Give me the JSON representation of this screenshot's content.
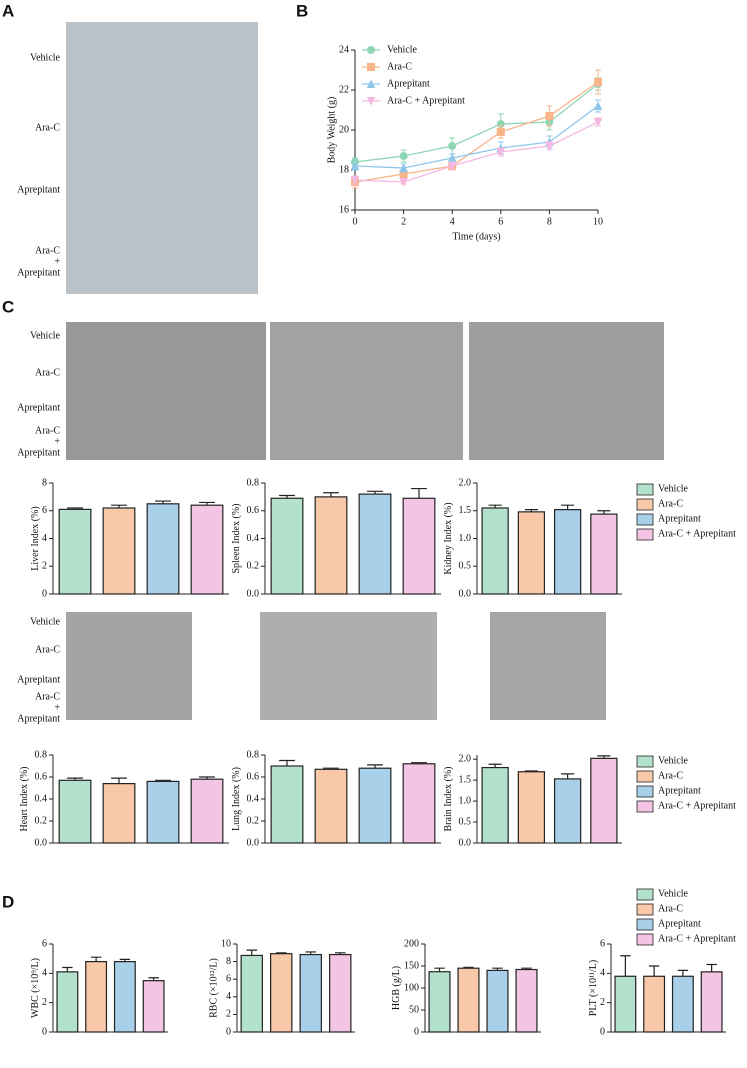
{
  "panel_labels": [
    "A",
    "B",
    "C",
    "D"
  ],
  "photo_labels": [
    [
      "Vehicle"
    ],
    [
      "Ara-C"
    ],
    [
      "Aprepitant"
    ],
    [
      "Ara-C",
      "+",
      "Aprepitant"
    ]
  ],
  "groups": [
    {
      "name": "Vehicle",
      "color": "#b3e2cc"
    },
    {
      "name": "Ara-C",
      "color": "#f8c8a8"
    },
    {
      "name": "Aprepitant",
      "color": "#a8d0e8"
    },
    {
      "name": "Ara-C + Aprepitant",
      "color": "#f4c4e4"
    }
  ],
  "chart_data": [
    {
      "type": "line",
      "xlabel": "Time (days)",
      "ylabel": "Body Weight (g)",
      "x": [
        0,
        2,
        4,
        6,
        8,
        10
      ],
      "xlim": [
        0,
        10
      ],
      "xticks": [
        0,
        2,
        4,
        6,
        8,
        10
      ],
      "ylim": [
        16,
        24
      ],
      "yticks": [
        16,
        18,
        20,
        22,
        24
      ],
      "series": [
        {
          "name": "Vehicle",
          "color": "#8fd6b4",
          "marker": "circle",
          "values": [
            18.4,
            18.7,
            19.2,
            20.3,
            20.4,
            22.3
          ],
          "errors": [
            0.2,
            0.3,
            0.4,
            0.5,
            0.4,
            0.3
          ]
        },
        {
          "name": "Ara-C",
          "color": "#f9b48a",
          "marker": "square",
          "values": [
            17.4,
            17.8,
            18.2,
            19.9,
            20.7,
            22.4
          ],
          "errors": [
            0.3,
            0.2,
            0.2,
            0.3,
            0.5,
            0.6
          ]
        },
        {
          "name": "Aprepitant",
          "color": "#8ec6ea",
          "marker": "triangle-up",
          "values": [
            18.2,
            18.1,
            18.6,
            19.1,
            19.4,
            21.2
          ],
          "errors": [
            0.2,
            0.2,
            0.2,
            0.3,
            0.3,
            0.3
          ]
        },
        {
          "name": "Ara-C + Aprepitant",
          "color": "#f4b8e0",
          "marker": "triangle-down",
          "values": [
            17.5,
            17.4,
            18.2,
            18.9,
            19.2,
            20.4
          ],
          "errors": [
            0.2,
            0.1,
            0.2,
            0.2,
            0.2,
            0.2
          ]
        }
      ]
    },
    {
      "type": "bar",
      "ylabel": "Liver Index (%)",
      "values": [
        6.1,
        6.2,
        6.5,
        6.4
      ],
      "errors": [
        0.1,
        0.2,
        0.2,
        0.2
      ],
      "ylim": [
        0,
        8
      ],
      "yticks": [
        0,
        2,
        4,
        6,
        8
      ]
    },
    {
      "type": "bar",
      "ylabel": "Spleen Index (%)",
      "values": [
        0.69,
        0.7,
        0.72,
        0.69
      ],
      "errors": [
        0.02,
        0.03,
        0.02,
        0.07
      ],
      "ylim": [
        0,
        0.8
      ],
      "yticks": [
        {
          "value": 0,
          "label": "0.0"
        },
        0.2,
        0.4,
        0.6,
        0.8
      ]
    },
    {
      "type": "bar",
      "ylabel": "Kidney Index (%)",
      "values": [
        1.55,
        1.48,
        1.52,
        1.44
      ],
      "errors": [
        0.05,
        0.04,
        0.08,
        0.06
      ],
      "ylim": [
        0,
        2
      ],
      "yticks": [
        {
          "value": 0,
          "label": "0.0"
        },
        0.5,
        {
          "value": 1,
          "label": "1.0"
        },
        1.5,
        {
          "value": 2,
          "label": "2.0"
        }
      ]
    },
    {
      "type": "bar",
      "ylabel": "Heart Index (%)",
      "values": [
        0.57,
        0.54,
        0.56,
        0.58
      ],
      "errors": [
        0.02,
        0.05,
        0.01,
        0.02
      ],
      "ylim": [
        0,
        0.8
      ],
      "yticks": [
        {
          "value": 0,
          "label": "0.0"
        },
        0.2,
        0.4,
        0.6,
        0.8
      ]
    },
    {
      "type": "bar",
      "ylabel": "Lung Index (%)",
      "values": [
        0.7,
        0.67,
        0.68,
        0.72
      ],
      "errors": [
        0.05,
        0.01,
        0.03,
        0.01
      ],
      "ylim": [
        0,
        0.8
      ],
      "yticks": [
        {
          "value": 0,
          "label": "0.0"
        },
        0.2,
        0.4,
        0.6,
        0.8
      ]
    },
    {
      "type": "bar",
      "ylabel": "Brain Index (%)",
      "values": [
        1.8,
        1.7,
        1.53,
        2.02
      ],
      "errors": [
        0.08,
        0.02,
        0.12,
        0.06
      ],
      "ylim": [
        0,
        2.1
      ],
      "yticks": [
        {
          "value": 0,
          "label": "0.0"
        },
        0.5,
        {
          "value": 1,
          "label": "1.0"
        },
        1.5,
        {
          "value": 2,
          "label": "2.0"
        }
      ]
    },
    {
      "type": "bar",
      "ylabel": "WBC (×10⁹/L)",
      "values": [
        4.1,
        4.8,
        4.8,
        3.5
      ],
      "errors": [
        0.3,
        0.3,
        0.15,
        0.2
      ],
      "ylim": [
        0,
        6
      ],
      "yticks": [
        0,
        2,
        4,
        6
      ]
    },
    {
      "type": "bar",
      "ylabel": "RBC (×10¹²/L)",
      "values": [
        8.7,
        8.9,
        8.8,
        8.8
      ],
      "errors": [
        0.6,
        0.1,
        0.3,
        0.2
      ],
      "ylim": [
        0,
        10
      ],
      "yticks": [
        0,
        2,
        4,
        6,
        8,
        10
      ]
    },
    {
      "type": "bar",
      "ylabel": "HGB (g/L)",
      "values": [
        137,
        145,
        140,
        142
      ],
      "errors": [
        8,
        2,
        5,
        3
      ],
      "ylim": [
        0,
        200
      ],
      "yticks": [
        0,
        50,
        100,
        150,
        200
      ]
    },
    {
      "type": "bar",
      "ylabel": "PLT (×10¹¹/L)",
      "values": [
        3.8,
        3.8,
        3.8,
        4.1
      ],
      "errors": [
        1.4,
        0.7,
        0.4,
        0.5
      ],
      "ylim": [
        0,
        6
      ],
      "yticks": [
        0,
        2,
        4,
        6
      ]
    }
  ]
}
